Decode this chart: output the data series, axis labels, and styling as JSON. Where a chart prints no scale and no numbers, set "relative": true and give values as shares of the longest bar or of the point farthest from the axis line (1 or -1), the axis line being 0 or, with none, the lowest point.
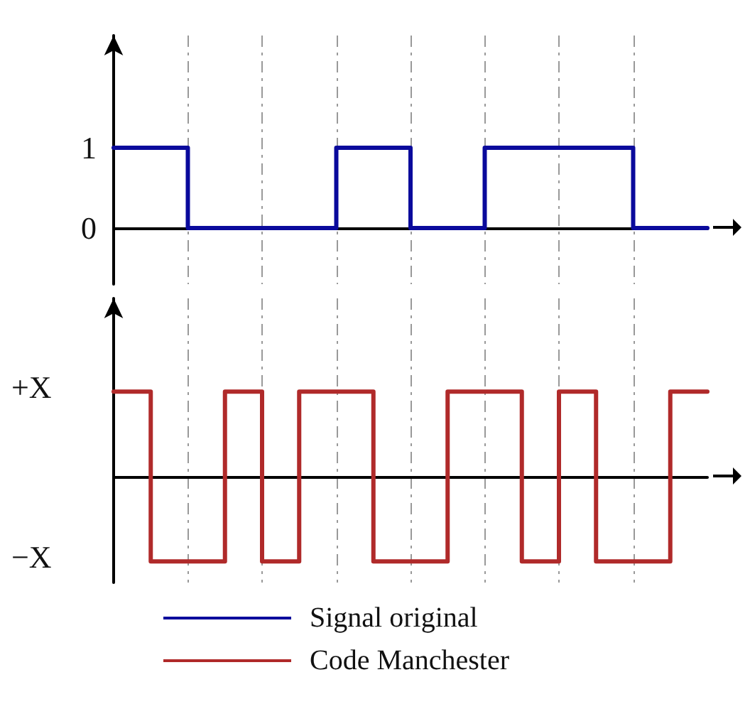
{
  "chart_data": [
    {
      "type": "step",
      "categories": [
        null,
        null,
        null,
        null,
        null,
        null,
        null,
        null,
        null,
        null,
        null,
        null,
        null,
        null,
        null,
        null,
        null
      ],
      "series": [
        {
          "name": "Signal original",
          "color": "#0a0a9c",
          "values": [
            1,
            1,
            0,
            0,
            0,
            0,
            1,
            1,
            0,
            0,
            1,
            1,
            1,
            1,
            0,
            0,
            0
          ]
        }
      ],
      "ylim": [
        -0.7,
        2.4
      ],
      "yticks": [
        0,
        1
      ],
      "tick_labels": "y",
      "grid": "x",
      "legend": "bottom",
      "marker": "none",
      "line_style": "solid"
    },
    {
      "type": "step",
      "categories": [
        null,
        null,
        null,
        null,
        null,
        null,
        null,
        null,
        null,
        null,
        null,
        null,
        null,
        null,
        null,
        null,
        null
      ],
      "series": [
        {
          "name": "Code Manchester",
          "color": "#b02a2a",
          "values": [
            1,
            -1,
            -1,
            1,
            -1,
            1,
            1,
            -1,
            -1,
            1,
            1,
            -1,
            1,
            -1,
            -1,
            1,
            1
          ]
        }
      ],
      "relative": true,
      "annotations": [
        "+X",
        "−X"
      ],
      "tick_labels": "y",
      "grid": "x",
      "legend": "bottom",
      "marker": "none",
      "line_style": "solid"
    }
  ]
}
